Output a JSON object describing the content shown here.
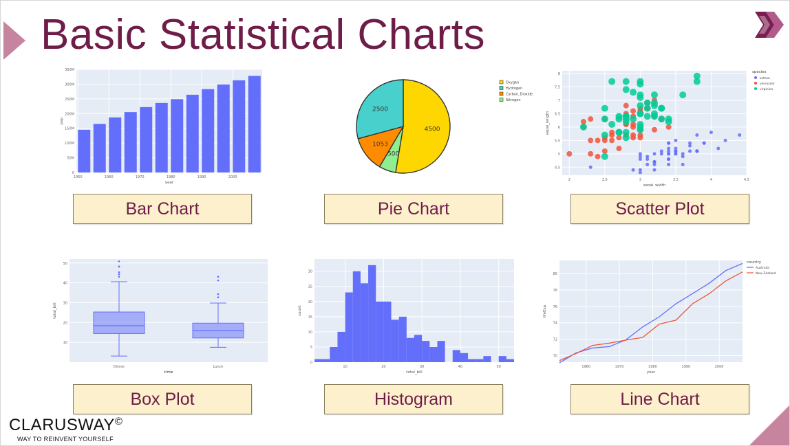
{
  "slide": {
    "title": "Basic Statistical Charts",
    "brand": "CLARUSWAY",
    "brand_symbol": "©",
    "brand_tagline": "WAY TO REINVENT YOURSELF",
    "accent_color": "#6e1c48",
    "shape_color": "#c7849e",
    "logo_icon": "double-chevron-icon"
  },
  "labels": {
    "bar": "Bar Chart",
    "pie": "Pie Chart",
    "scatter": "Scatter Plot",
    "box": "Box Plot",
    "hist": "Histogram",
    "line": "Line Chart"
  },
  "chart_data": [
    {
      "id": "bar",
      "type": "bar",
      "xlabel": "year",
      "ylabel": "pop",
      "categories": [
        1952,
        1957,
        1962,
        1967,
        1972,
        1977,
        1982,
        1987,
        1992,
        1997,
        2002,
        2007
      ],
      "values": [
        145,
        165,
        187,
        205,
        222,
        236,
        249,
        264,
        283,
        299,
        313,
        328
      ],
      "xticks": [
        "1950",
        "1960",
        "1970",
        "1980",
        "1990",
        "2000"
      ],
      "xtick_values": [
        1950,
        1960,
        1970,
        1980,
        1990,
        2000
      ],
      "yticks": [
        "0",
        "50M",
        "100M",
        "150M",
        "200M",
        "250M",
        "300M",
        "350M"
      ],
      "ytick_values": [
        0,
        50,
        100,
        150,
        200,
        250,
        300,
        350
      ],
      "ylim": [
        0,
        350
      ],
      "xlim": [
        1949.5,
        2009.5
      ],
      "color": "#636efa"
    },
    {
      "id": "pie",
      "type": "pie",
      "labels": [
        "Oxygen",
        "Hydrogen",
        "Carbon_Dioxide",
        "Nitrogen"
      ],
      "values": [
        4500,
        2500,
        1053,
        500
      ],
      "slice_order": [
        0,
        3,
        2,
        1
      ],
      "colors": [
        "#ffd700",
        "#48d1cc",
        "#ff8c00",
        "#90ee90"
      ],
      "legend_position": "top-right"
    },
    {
      "id": "scatter",
      "type": "scatter",
      "xlabel": "sepal_width",
      "ylabel": "sepal_length",
      "legend_title": "species",
      "xlim": [
        1.9,
        4.5
      ],
      "ylim": [
        4.2,
        8.1
      ],
      "xticks": [
        "2",
        "2.5",
        "3",
        "3.5",
        "4",
        "4.5"
      ],
      "xtick_values": [
        2,
        2.5,
        3,
        3.5,
        4,
        4.5
      ],
      "yticks": [
        "4.5",
        "5",
        "5.5",
        "6",
        "6.5",
        "7",
        "7.5",
        "8"
      ],
      "ytick_values": [
        4.5,
        5,
        5.5,
        6,
        6.5,
        7,
        7.5,
        8
      ],
      "series": [
        {
          "name": "setosa",
          "color": "#636efa",
          "size": 2.5,
          "points": [
            [
              3.5,
              5.1
            ],
            [
              3.0,
              4.9
            ],
            [
              3.2,
              4.7
            ],
            [
              3.1,
              4.6
            ],
            [
              3.6,
              5.0
            ],
            [
              3.9,
              5.4
            ],
            [
              3.4,
              4.6
            ],
            [
              3.4,
              5.0
            ],
            [
              2.9,
              4.4
            ],
            [
              3.1,
              4.9
            ],
            [
              3.7,
              5.4
            ],
            [
              3.4,
              4.8
            ],
            [
              3.0,
              4.8
            ],
            [
              3.0,
              4.3
            ],
            [
              4.0,
              5.8
            ],
            [
              4.4,
              5.7
            ],
            [
              3.9,
              5.4
            ],
            [
              3.5,
              5.1
            ],
            [
              3.8,
              5.7
            ],
            [
              3.8,
              5.1
            ],
            [
              3.4,
              5.4
            ],
            [
              3.7,
              5.1
            ],
            [
              3.6,
              4.6
            ],
            [
              3.3,
              5.1
            ],
            [
              3.4,
              4.8
            ],
            [
              3.0,
              5.0
            ],
            [
              3.4,
              5.0
            ],
            [
              3.5,
              5.2
            ],
            [
              3.4,
              5.2
            ],
            [
              3.2,
              4.7
            ],
            [
              3.1,
              4.8
            ],
            [
              3.4,
              5.4
            ],
            [
              4.1,
              5.2
            ],
            [
              4.2,
              5.5
            ],
            [
              3.2,
              5.0
            ],
            [
              3.5,
              5.5
            ],
            [
              3.6,
              4.9
            ],
            [
              3.0,
              4.4
            ],
            [
              3.4,
              5.1
            ],
            [
              3.5,
              5.0
            ],
            [
              2.3,
              4.5
            ],
            [
              3.2,
              4.4
            ],
            [
              3.5,
              5.0
            ],
            [
              3.8,
              5.1
            ],
            [
              3.8,
              5.1
            ],
            [
              3.2,
              4.6
            ],
            [
              3.7,
              5.3
            ],
            [
              3.3,
              5.0
            ]
          ]
        },
        {
          "name": "versicolor",
          "color": "#ef553b",
          "size": 4,
          "points": [
            [
              3.2,
              7.0
            ],
            [
              3.2,
              6.4
            ],
            [
              3.1,
              6.9
            ],
            [
              2.3,
              5.5
            ],
            [
              2.8,
              6.5
            ],
            [
              2.8,
              5.7
            ],
            [
              3.3,
              6.3
            ],
            [
              2.4,
              4.9
            ],
            [
              2.9,
              6.6
            ],
            [
              2.7,
              5.2
            ],
            [
              2.0,
              5.0
            ],
            [
              3.0,
              5.9
            ],
            [
              2.2,
              6.0
            ],
            [
              2.9,
              6.1
            ],
            [
              2.9,
              5.6
            ],
            [
              3.1,
              6.7
            ],
            [
              3.0,
              5.6
            ],
            [
              2.7,
              5.8
            ],
            [
              2.2,
              6.2
            ],
            [
              2.5,
              5.6
            ],
            [
              3.2,
              5.9
            ],
            [
              2.8,
              6.1
            ],
            [
              2.5,
              6.3
            ],
            [
              2.8,
              6.1
            ],
            [
              2.9,
              6.4
            ],
            [
              3.0,
              6.6
            ],
            [
              2.8,
              6.8
            ],
            [
              3.0,
              6.7
            ],
            [
              2.9,
              6.0
            ],
            [
              2.6,
              5.7
            ],
            [
              2.4,
              5.5
            ],
            [
              2.7,
              5.8
            ],
            [
              3.4,
              6.0
            ],
            [
              3.1,
              6.7
            ],
            [
              2.3,
              6.3
            ],
            [
              2.5,
              5.5
            ],
            [
              2.6,
              5.5
            ],
            [
              2.6,
              5.8
            ],
            [
              2.3,
              5.0
            ],
            [
              2.7,
              5.6
            ],
            [
              3.0,
              5.7
            ],
            [
              2.9,
              5.7
            ],
            [
              2.5,
              5.1
            ],
            [
              2.8,
              5.7
            ]
          ]
        },
        {
          "name": "virginica",
          "color": "#00cc96",
          "size": 5,
          "points": [
            [
              3.3,
              6.3
            ],
            [
              2.7,
              5.8
            ],
            [
              3.0,
              7.1
            ],
            [
              2.9,
              6.3
            ],
            [
              3.0,
              6.5
            ],
            [
              3.0,
              7.6
            ],
            [
              2.5,
              4.9
            ],
            [
              2.9,
              7.3
            ],
            [
              2.5,
              6.7
            ],
            [
              3.6,
              7.2
            ],
            [
              3.2,
              6.5
            ],
            [
              2.7,
              6.4
            ],
            [
              3.0,
              6.8
            ],
            [
              2.5,
              5.7
            ],
            [
              2.8,
              5.8
            ],
            [
              3.2,
              6.4
            ],
            [
              3.0,
              6.5
            ],
            [
              3.8,
              7.7
            ],
            [
              2.6,
              7.7
            ],
            [
              2.2,
              6.0
            ],
            [
              3.2,
              6.9
            ],
            [
              2.8,
              5.6
            ],
            [
              2.8,
              7.7
            ],
            [
              2.7,
              6.3
            ],
            [
              3.3,
              6.7
            ],
            [
              3.2,
              7.2
            ],
            [
              2.8,
              6.2
            ],
            [
              3.0,
              6.1
            ],
            [
              2.8,
              6.4
            ],
            [
              3.0,
              7.2
            ],
            [
              2.8,
              7.4
            ],
            [
              3.8,
              7.9
            ],
            [
              2.8,
              6.4
            ],
            [
              2.8,
              6.3
            ],
            [
              2.6,
              6.1
            ],
            [
              3.0,
              7.7
            ],
            [
              3.4,
              6.3
            ],
            [
              3.1,
              6.4
            ],
            [
              3.0,
              6.0
            ],
            [
              3.1,
              6.9
            ],
            [
              3.1,
              6.7
            ],
            [
              2.7,
              5.8
            ],
            [
              3.2,
              6.8
            ],
            [
              3.3,
              6.7
            ],
            [
              2.5,
              6.3
            ],
            [
              3.4,
              6.2
            ],
            [
              3.0,
              5.9
            ]
          ]
        }
      ]
    },
    {
      "id": "box",
      "type": "box",
      "xlabel": "time",
      "ylabel": "total_bill",
      "ylim": [
        0,
        52
      ],
      "yticks": [
        "10",
        "20",
        "30",
        "40",
        "50"
      ],
      "ytick_values": [
        10,
        20,
        30,
        40,
        50
      ],
      "color": "#636efa",
      "boxes": [
        {
          "name": "Dinner",
          "min": 3.07,
          "q1": 14.4,
          "median": 18.4,
          "q3": 25.3,
          "max": 40.55,
          "outliers": [
            43.11,
            44.3,
            45.35,
            48.17,
            48.27,
            50.81
          ]
        },
        {
          "name": "Lunch",
          "min": 7.51,
          "q1": 12.2,
          "median": 15.97,
          "q3": 19.7,
          "max": 29.8,
          "outliers": [
            32.68,
            34.3,
            41.19,
            43.11
          ]
        }
      ]
    },
    {
      "id": "hist",
      "type": "bar",
      "xlabel": "total_bill",
      "ylabel": "count",
      "bin_start": 2,
      "bin_width": 2,
      "values": [
        1,
        1,
        5,
        10,
        23,
        30,
        26,
        32,
        20,
        20,
        14,
        15,
        8,
        9,
        7,
        5,
        7,
        0,
        4,
        3,
        1,
        1,
        2,
        0,
        2,
        1
      ],
      "xticks": [
        "10",
        "20",
        "30",
        "40",
        "50"
      ],
      "xtick_values": [
        10,
        20,
        30,
        40,
        50
      ],
      "yticks": [
        "0",
        "5",
        "10",
        "15",
        "20",
        "25",
        "30"
      ],
      "ytick_values": [
        0,
        5,
        10,
        15,
        20,
        25,
        30
      ],
      "xlim": [
        2,
        54
      ],
      "ylim": [
        0,
        34
      ],
      "color": "#636efa"
    },
    {
      "id": "line",
      "type": "line",
      "xlabel": "year",
      "ylabel": "lifeExp",
      "legend_title": "country",
      "x": [
        1952,
        1957,
        1962,
        1967,
        1972,
        1977,
        1982,
        1987,
        1992,
        1997,
        2002,
        2007
      ],
      "xlim": [
        1952,
        2007
      ],
      "ylim": [
        69.2,
        81.6
      ],
      "xticks": [
        "1960",
        "1970",
        "1980",
        "1990",
        "2000"
      ],
      "xtick_values": [
        1960,
        1970,
        1980,
        1990,
        2000
      ],
      "yticks": [
        "70",
        "72",
        "74",
        "76",
        "78",
        "80"
      ],
      "ytick_values": [
        70,
        72,
        74,
        76,
        78,
        80
      ],
      "series": [
        {
          "name": "Australia",
          "color": "#636efa",
          "values": [
            69.12,
            70.33,
            70.93,
            71.1,
            71.93,
            73.49,
            74.74,
            76.32,
            77.56,
            78.83,
            80.37,
            81.235
          ]
        },
        {
          "name": "New Zealand",
          "color": "#ef553b",
          "values": [
            69.39,
            70.26,
            71.24,
            71.52,
            71.89,
            72.22,
            73.84,
            74.32,
            76.33,
            77.55,
            79.11,
            80.204
          ]
        }
      ]
    }
  ]
}
